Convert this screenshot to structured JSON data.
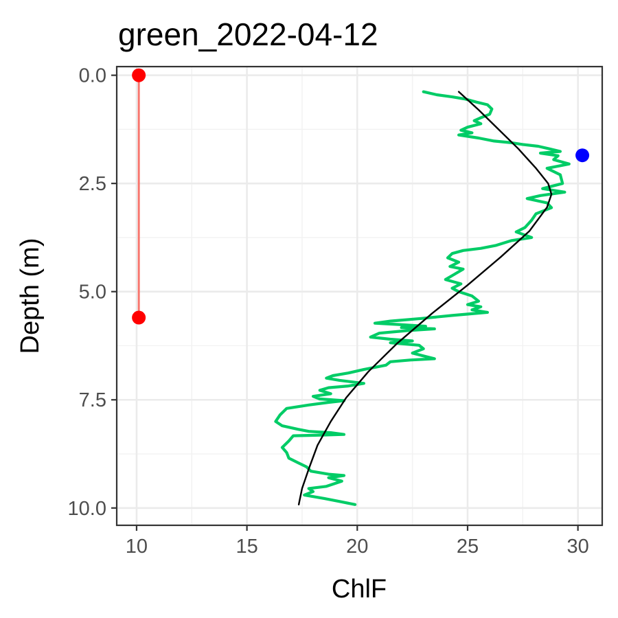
{
  "chart_data": {
    "type": "line",
    "title": "green_2022-04-12",
    "xlabel": "ChlF",
    "ylabel": "Depth (m)",
    "xlim": [
      9.1,
      31.1
    ],
    "ylim": [
      -0.2,
      10.4
    ],
    "y_reversed": true,
    "x_ticks": [
      10,
      15,
      20,
      25,
      30
    ],
    "x_tick_labels": [
      "10",
      "15",
      "20",
      "25",
      "30"
    ],
    "y_ticks": [
      0,
      2.5,
      5,
      7.5,
      10
    ],
    "y_tick_labels": [
      "0.0",
      "2.5",
      "5.0",
      "7.5",
      "10.0"
    ],
    "grid": true,
    "series": [
      {
        "role": "profile",
        "color": "#00cc66",
        "points": [
          [
            23.0,
            0.38
          ],
          [
            23.6,
            0.45
          ],
          [
            24.3,
            0.5
          ],
          [
            24.9,
            0.55
          ],
          [
            25.4,
            0.62
          ],
          [
            25.9,
            0.68
          ],
          [
            26.1,
            0.78
          ],
          [
            26.0,
            0.9
          ],
          [
            25.6,
            0.98
          ],
          [
            25.3,
            1.05
          ],
          [
            25.6,
            1.12
          ],
          [
            25.0,
            1.2
          ],
          [
            24.7,
            1.27
          ],
          [
            25.2,
            1.33
          ],
          [
            24.6,
            1.38
          ],
          [
            25.5,
            1.45
          ],
          [
            26.2,
            1.52
          ],
          [
            27.0,
            1.56
          ],
          [
            27.5,
            1.6
          ],
          [
            28.2,
            1.64
          ],
          [
            28.7,
            1.7
          ],
          [
            29.2,
            1.76
          ],
          [
            28.3,
            1.8
          ],
          [
            29.1,
            1.86
          ],
          [
            28.9,
            1.95
          ],
          [
            29.6,
            2.05
          ],
          [
            28.6,
            2.15
          ],
          [
            29.2,
            2.3
          ],
          [
            29.3,
            2.5
          ],
          [
            28.4,
            2.62
          ],
          [
            29.4,
            2.7
          ],
          [
            28.3,
            2.78
          ],
          [
            27.7,
            2.85
          ],
          [
            28.6,
            2.95
          ],
          [
            28.8,
            3.06
          ],
          [
            28.1,
            3.2
          ],
          [
            27.9,
            3.35
          ],
          [
            27.6,
            3.52
          ],
          [
            27.2,
            3.62
          ],
          [
            27.9,
            3.75
          ],
          [
            27.0,
            3.82
          ],
          [
            26.3,
            3.93
          ],
          [
            25.6,
            4.0
          ],
          [
            24.8,
            4.05
          ],
          [
            24.3,
            4.12
          ],
          [
            24.1,
            4.22
          ],
          [
            24.6,
            4.32
          ],
          [
            24.2,
            4.42
          ],
          [
            24.8,
            4.48
          ],
          [
            24.4,
            4.6
          ],
          [
            24.0,
            4.72
          ],
          [
            24.7,
            4.82
          ],
          [
            24.3,
            4.92
          ],
          [
            24.6,
            5.0
          ],
          [
            25.2,
            5.1
          ],
          [
            25.5,
            5.22
          ],
          [
            25.0,
            5.3
          ],
          [
            25.6,
            5.35
          ],
          [
            25.2,
            5.42
          ],
          [
            25.9,
            5.48
          ],
          [
            24.3,
            5.55
          ],
          [
            22.9,
            5.62
          ],
          [
            21.5,
            5.68
          ],
          [
            20.8,
            5.73
          ],
          [
            21.9,
            5.76
          ],
          [
            23.1,
            5.8
          ],
          [
            22.0,
            5.83
          ],
          [
            23.5,
            5.86
          ],
          [
            22.3,
            5.9
          ],
          [
            21.0,
            5.96
          ],
          [
            20.6,
            6.05
          ],
          [
            21.5,
            6.1
          ],
          [
            22.5,
            6.14
          ],
          [
            21.5,
            6.18
          ],
          [
            22.8,
            6.24
          ],
          [
            23.0,
            6.32
          ],
          [
            22.5,
            6.42
          ],
          [
            23.1,
            6.5
          ],
          [
            23.5,
            6.55
          ],
          [
            22.4,
            6.58
          ],
          [
            21.5,
            6.62
          ],
          [
            21.3,
            6.7
          ],
          [
            20.3,
            6.8
          ],
          [
            19.6,
            6.88
          ],
          [
            18.9,
            6.94
          ],
          [
            18.6,
            7.0
          ],
          [
            19.2,
            7.05
          ],
          [
            20.3,
            7.12
          ],
          [
            19.6,
            7.18
          ],
          [
            18.7,
            7.22
          ],
          [
            18.3,
            7.28
          ],
          [
            18.8,
            7.36
          ],
          [
            18.0,
            7.42
          ],
          [
            18.3,
            7.48
          ],
          [
            19.4,
            7.52
          ],
          [
            18.7,
            7.56
          ],
          [
            17.8,
            7.62
          ],
          [
            16.8,
            7.7
          ],
          [
            16.5,
            7.85
          ],
          [
            16.3,
            8.0
          ],
          [
            16.6,
            8.1
          ],
          [
            17.3,
            8.18
          ],
          [
            17.8,
            8.23
          ],
          [
            18.8,
            8.26
          ],
          [
            19.4,
            8.3
          ],
          [
            18.1,
            8.32
          ],
          [
            17.1,
            8.33
          ],
          [
            16.9,
            8.45
          ],
          [
            16.6,
            8.6
          ],
          [
            16.8,
            8.72
          ],
          [
            16.9,
            8.85
          ],
          [
            17.3,
            8.95
          ],
          [
            17.7,
            9.05
          ],
          [
            17.9,
            9.15
          ],
          [
            18.7,
            9.22
          ],
          [
            19.4,
            9.25
          ],
          [
            18.7,
            9.3
          ],
          [
            19.3,
            9.38
          ],
          [
            18.6,
            9.5
          ],
          [
            17.8,
            9.55
          ],
          [
            18.0,
            9.62
          ],
          [
            17.6,
            9.7
          ],
          [
            18.5,
            9.78
          ],
          [
            19.2,
            9.85
          ],
          [
            19.9,
            9.92
          ]
        ]
      },
      {
        "role": "smooth-fit",
        "color": "#000000",
        "points": [
          [
            24.6,
            0.38
          ],
          [
            25.5,
            0.8
          ],
          [
            26.4,
            1.25
          ],
          [
            27.3,
            1.7
          ],
          [
            28.1,
            2.15
          ],
          [
            28.65,
            2.5
          ],
          [
            28.8,
            2.75
          ],
          [
            28.6,
            3.05
          ],
          [
            27.8,
            3.6
          ],
          [
            26.5,
            4.2
          ],
          [
            25.0,
            4.85
          ],
          [
            23.4,
            5.5
          ],
          [
            21.8,
            6.2
          ],
          [
            20.5,
            6.85
          ],
          [
            19.5,
            7.45
          ],
          [
            18.8,
            8.0
          ],
          [
            18.2,
            8.55
          ],
          [
            17.8,
            9.1
          ],
          [
            17.5,
            9.55
          ],
          [
            17.35,
            9.92
          ]
        ]
      }
    ],
    "segment": {
      "color": "#f8766d",
      "point_color": "#ff0000",
      "x": 10.1,
      "y_top": 0.0,
      "y_bottom": 5.6
    },
    "max_point": {
      "color": "#0000ff",
      "x": 30.2,
      "y": 1.85
    }
  }
}
